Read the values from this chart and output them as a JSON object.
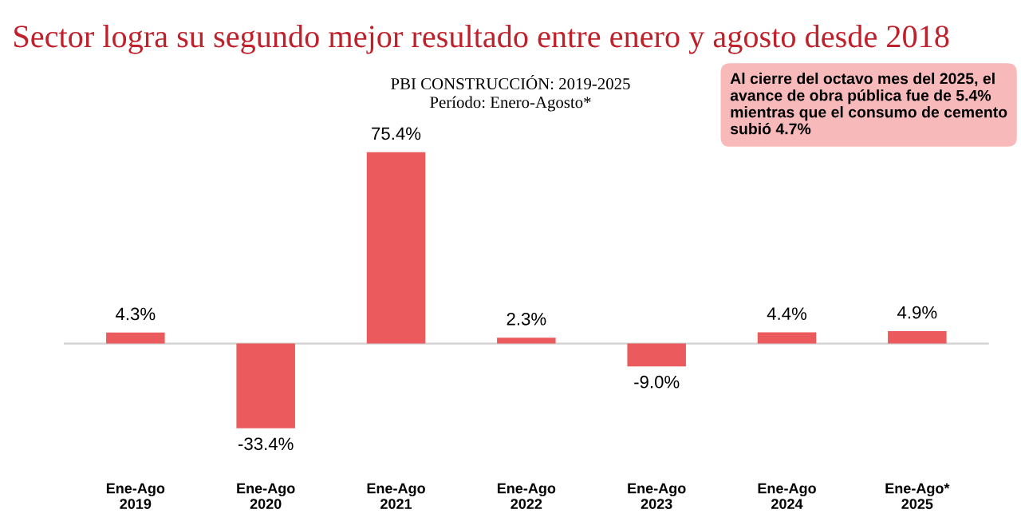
{
  "chart_data": {
    "type": "bar",
    "title": "Sector logra su segundo mejor resultado entre enero y agosto desde 2018",
    "subtitle": "PBI CONSTRUCCIÓN: 2019-2025\nPeríodo: Enero-Agosto*",
    "categories": [
      "Ene-Ago\n2019",
      "Ene-Ago\n2020",
      "Ene-Ago\n2021",
      "Ene-Ago\n2022",
      "Ene-Ago\n2023",
      "Ene-Ago\n2024",
      "Ene-Ago*\n2025"
    ],
    "values": [
      4.3,
      -33.4,
      75.4,
      2.3,
      -9.0,
      4.4,
      4.9
    ],
    "value_labels": [
      "4.3%",
      "-33.4%",
      "75.4%",
      "2.3%",
      "-9.0%",
      "4.4%",
      "4.9%"
    ],
    "color": "#eb5a5c",
    "annotations": [
      "Al cierre del octavo mes del 2025, el avance de obra pública fue de 5.4% mientras que el consumo de cemento subió 4.7%"
    ],
    "grid": false
  }
}
